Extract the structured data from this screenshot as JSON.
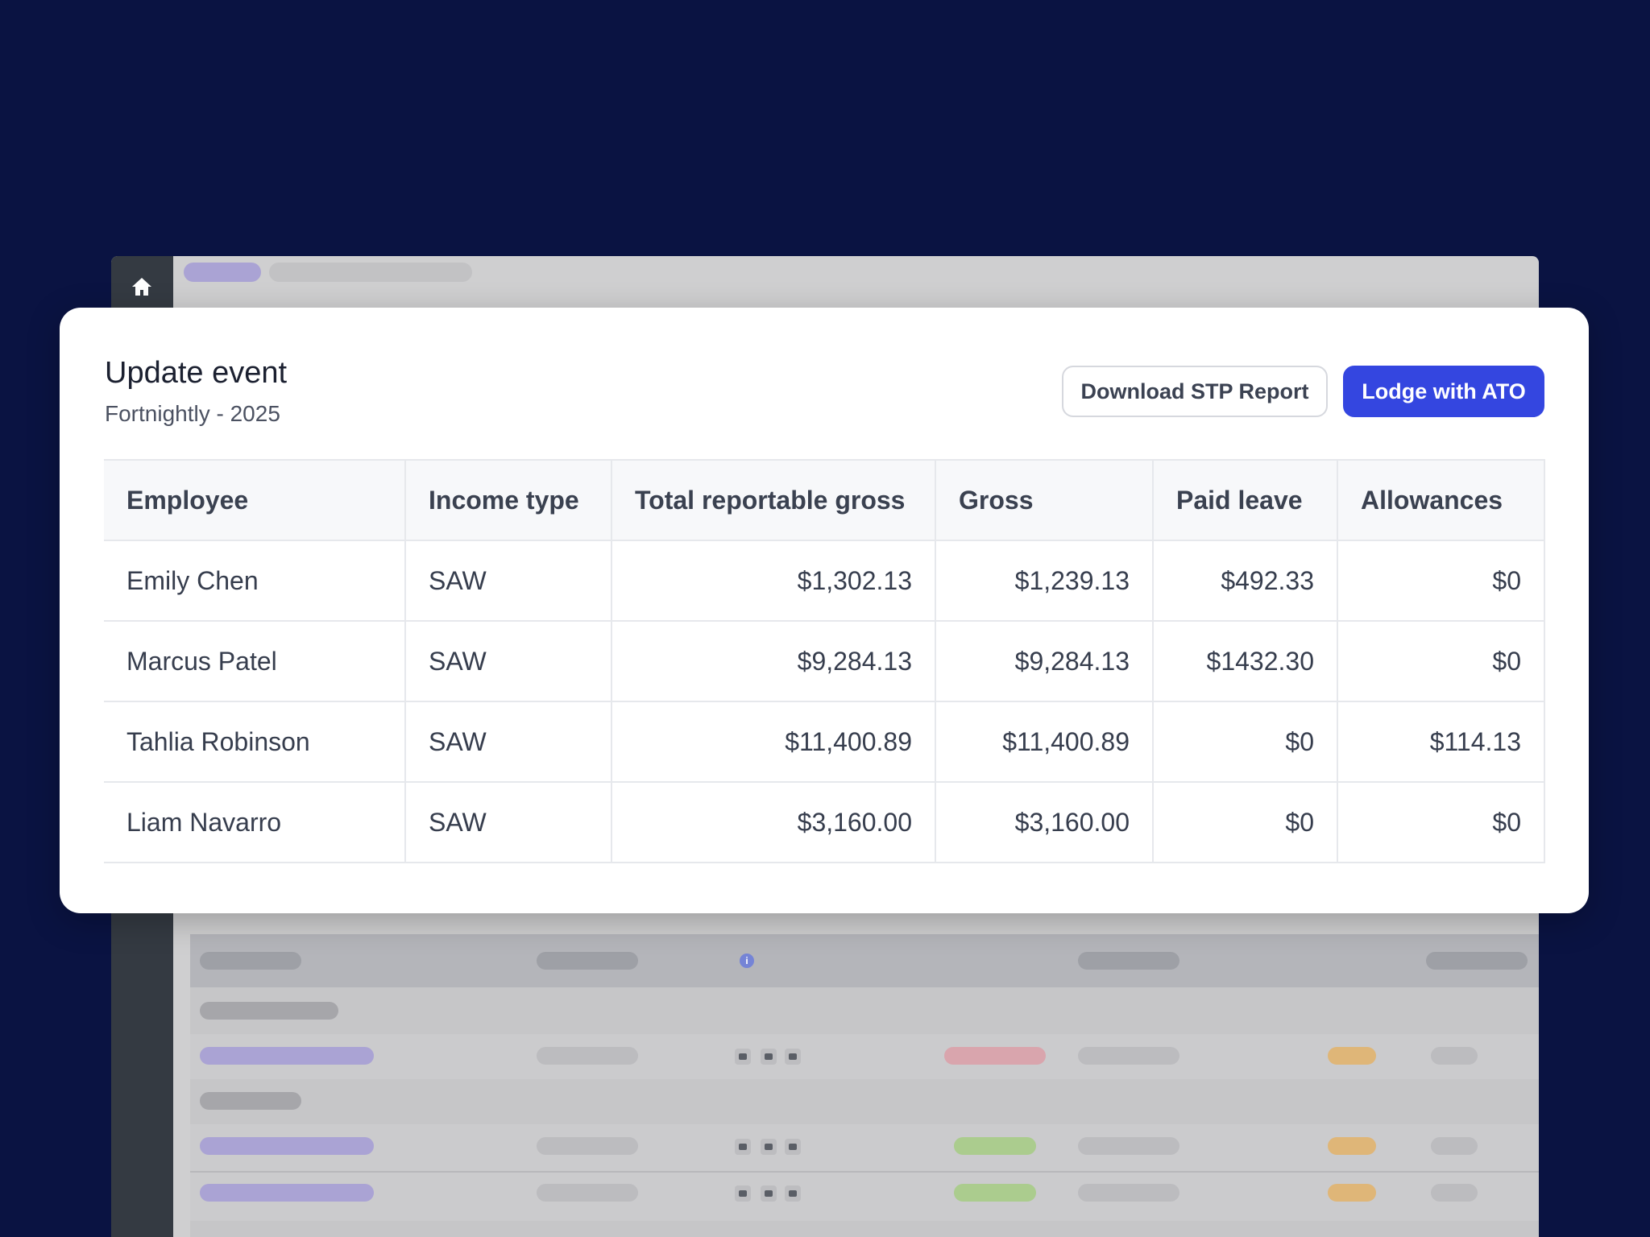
{
  "modal": {
    "title": "Update event",
    "subtitle": "Fortnightly - 2025",
    "download_button": "Download STP Report",
    "lodge_button": "Lodge with ATO"
  },
  "table": {
    "columns": [
      "Employee",
      "Income type",
      "Total reportable gross",
      "Gross",
      "Paid leave",
      "Allowances"
    ],
    "rows": [
      {
        "employee": "Emily Chen",
        "income_type": "SAW",
        "total_reportable_gross": "$1,302.13",
        "gross": "$1,239.13",
        "paid_leave": "$492.33",
        "allowances": "$0"
      },
      {
        "employee": "Marcus Patel",
        "income_type": "SAW",
        "total_reportable_gross": "$9,284.13",
        "gross": "$9,284.13",
        "paid_leave": "$1432.30",
        "allowances": "$0"
      },
      {
        "employee": "Tahlia Robinson",
        "income_type": "SAW",
        "total_reportable_gross": "$11,400.89",
        "gross": "$11,400.89",
        "paid_leave": "$0",
        "allowances": "$114.13"
      },
      {
        "employee": "Liam Navarro",
        "income_type": "SAW",
        "total_reportable_gross": "$3,160.00",
        "gross": "$3,160.00",
        "paid_leave": "$0",
        "allowances": "$0"
      }
    ]
  },
  "background": {
    "info_glyph": "i",
    "icons": [
      "home-icon",
      "document-icon",
      "mail-icon",
      "settings-icon",
      "info-icon"
    ]
  },
  "colors": {
    "page_background": "#0a1342",
    "primary_button": "#3446e0",
    "skeleton_purple": "#aaa3d4",
    "skeleton_red": "#d9a5ad",
    "skeleton_green": "#abcc8e",
    "skeleton_orange": "#dfb678"
  }
}
